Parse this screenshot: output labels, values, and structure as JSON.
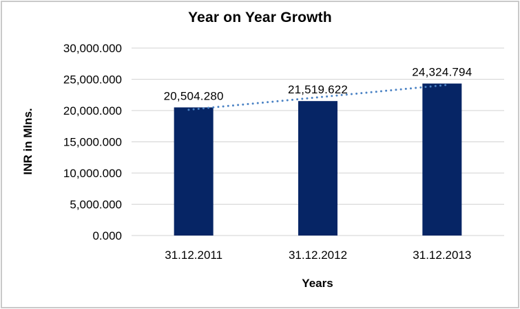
{
  "chart": {
    "title": "Year on Year Growth",
    "x_axis_title": "Years",
    "y_axis_title": "INR in Mlns."
  },
  "chart_data": {
    "type": "bar",
    "title": "Year on Year Growth",
    "xlabel": "Years",
    "ylabel": "INR in Mlns.",
    "categories": [
      "31.12.2011",
      "31.12.2012",
      "31.12.2013"
    ],
    "values": [
      20504.28,
      21519.622,
      24324.794
    ],
    "data_labels": [
      "20,504.280",
      "21,519.622",
      "24,324.794"
    ],
    "y_ticks": [
      {
        "value": 30000,
        "label": "30,000.000"
      },
      {
        "value": 25000,
        "label": "25,000.000"
      },
      {
        "value": 20000,
        "label": "20,000.000"
      },
      {
        "value": 15000,
        "label": "15,000.000"
      },
      {
        "value": 10000,
        "label": "10,000.000"
      },
      {
        "value": 5000,
        "label": "5,000.000"
      },
      {
        "value": 0,
        "label": "0.000"
      }
    ],
    "ylim": [
      0,
      30000
    ],
    "grid": true,
    "legend": "none",
    "colors": {
      "bar": "#062565",
      "gridline": "#d9d9d9",
      "trendline": "#4a82c4",
      "text": "#000000",
      "frame_border": "#c9c9c9"
    },
    "trendline": {
      "type": "linear",
      "style": "dotted"
    }
  }
}
